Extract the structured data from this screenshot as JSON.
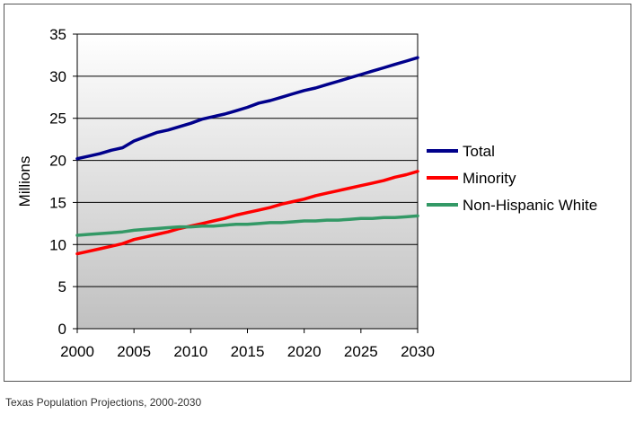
{
  "caption": "Texas Population Projections, 2000-2030",
  "chart_data": {
    "type": "line",
    "title": "",
    "xlabel": "",
    "ylabel": "Millions",
    "xlim": [
      2000,
      2030
    ],
    "ylim": [
      0,
      35
    ],
    "x_ticks": [
      2000,
      2005,
      2010,
      2015,
      2020,
      2025,
      2030
    ],
    "y_ticks": [
      0,
      5,
      10,
      15,
      20,
      25,
      30,
      35
    ],
    "x_tick_labels": [
      "2000",
      "2005",
      "2010",
      "2015",
      "2020",
      "2025",
      "2030"
    ],
    "y_tick_labels": [
      "0",
      "5",
      "10",
      "15",
      "20",
      "25",
      "30",
      "35"
    ],
    "grid": "horizontal",
    "legend_position": "right",
    "x": [
      2000,
      2001,
      2002,
      2003,
      2004,
      2005,
      2006,
      2007,
      2008,
      2009,
      2010,
      2011,
      2012,
      2013,
      2014,
      2015,
      2016,
      2017,
      2018,
      2019,
      2020,
      2021,
      2022,
      2023,
      2024,
      2025,
      2026,
      2027,
      2028,
      2029,
      2030
    ],
    "series": [
      {
        "name": "Total",
        "color": "#00008b",
        "values": [
          20.2,
          20.5,
          20.8,
          21.2,
          21.5,
          22.3,
          22.8,
          23.3,
          23.6,
          24.0,
          24.4,
          24.9,
          25.2,
          25.5,
          25.9,
          26.3,
          26.8,
          27.1,
          27.5,
          27.9,
          28.3,
          28.6,
          29.0,
          29.4,
          29.8,
          30.2,
          30.6,
          31.0,
          31.4,
          31.8,
          32.2
        ]
      },
      {
        "name": "Minority",
        "color": "#ff0000",
        "values": [
          8.9,
          9.2,
          9.5,
          9.8,
          10.1,
          10.6,
          10.9,
          11.2,
          11.5,
          11.9,
          12.2,
          12.5,
          12.8,
          13.1,
          13.5,
          13.8,
          14.1,
          14.4,
          14.8,
          15.1,
          15.4,
          15.8,
          16.1,
          16.4,
          16.7,
          17.0,
          17.3,
          17.6,
          18.0,
          18.3,
          18.7
        ]
      },
      {
        "name": "Non-Hispanic White",
        "color": "#339966",
        "values": [
          11.1,
          11.2,
          11.3,
          11.4,
          11.5,
          11.7,
          11.8,
          11.9,
          12.0,
          12.1,
          12.1,
          12.2,
          12.2,
          12.3,
          12.4,
          12.4,
          12.5,
          12.6,
          12.6,
          12.7,
          12.8,
          12.8,
          12.9,
          12.9,
          13.0,
          13.1,
          13.1,
          13.2,
          13.2,
          13.3,
          13.4
        ]
      }
    ]
  }
}
